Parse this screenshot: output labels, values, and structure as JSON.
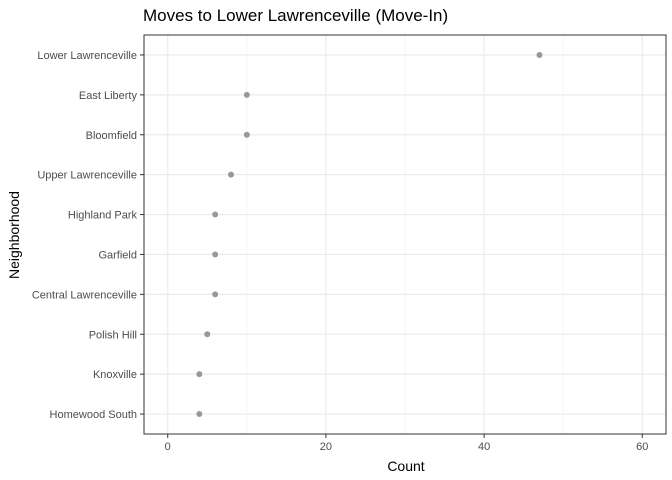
{
  "chart_data": {
    "type": "scatter",
    "title": "Moves to Lower Lawrenceville (Move-In)",
    "xlabel": "Count",
    "ylabel": "Neighborhood",
    "xlim": [
      -3,
      63
    ],
    "x_ticks": [
      0,
      20,
      40,
      60
    ],
    "x_minor_ticks": [
      10,
      30,
      50
    ],
    "grid": true,
    "point_color": "#999999",
    "categories": [
      "Lower Lawrenceville",
      "East Liberty",
      "Bloomfield",
      "Upper Lawrenceville",
      "Highland Park",
      "Garfield",
      "Central Lawrenceville",
      "Polish Hill",
      "Knoxville",
      "Homewood South"
    ],
    "values": [
      47,
      10,
      10,
      8,
      6,
      6,
      6,
      5,
      4,
      4
    ]
  }
}
